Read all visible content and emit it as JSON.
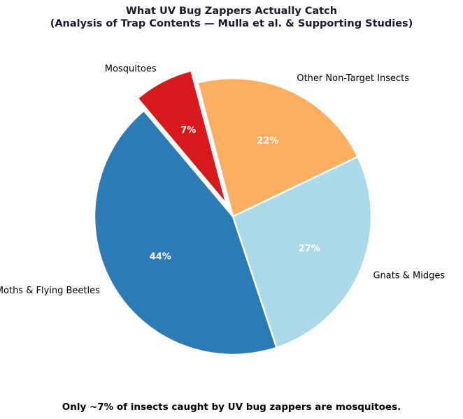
{
  "chart_data": {
    "type": "pie",
    "title_line1": "What UV Bug Zappers Actually Catch",
    "title_line2": "(Analysis of Trap Contents — Mulla et al. & Supporting Studies)",
    "slices": [
      {
        "label": "Mosquitoes",
        "value": 7,
        "pct_label": "7%",
        "color": "#d7191c",
        "exploded": true
      },
      {
        "label": "Other Non-Target Insects",
        "value": 22,
        "pct_label": "22%",
        "color": "#fdae61",
        "exploded": false
      },
      {
        "label": "Gnats & Midges",
        "value": 27,
        "pct_label": "27%",
        "color": "#abd9e9",
        "exploded": false
      },
      {
        "label": "Moths & Flying Beetles",
        "value": 44,
        "pct_label": "44%",
        "color": "#2c7bb6",
        "exploded": false
      }
    ],
    "start_angle_deg": 130,
    "direction": "clockwise",
    "footnote": "Only ~7% of insects caught by UV bug zappers are mosquitoes."
  }
}
